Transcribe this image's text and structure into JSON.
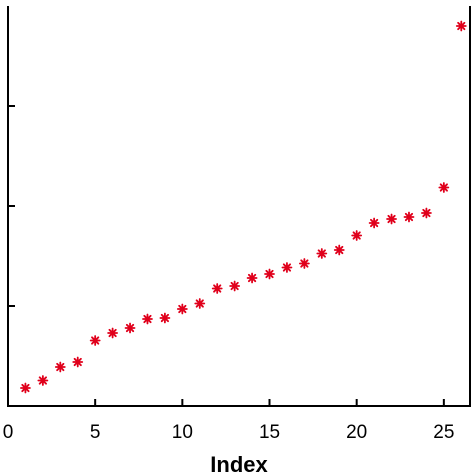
{
  "chart_data": {
    "type": "scatter",
    "title": "",
    "xlabel": "Index",
    "ylabel": "",
    "xlim": [
      0,
      26.5
    ],
    "ylim": [
      0,
      8
    ],
    "xticks": [
      0,
      5,
      10,
      15,
      20,
      25
    ],
    "xtick_labels": [
      "0",
      "5",
      "10",
      "15",
      "20",
      "25"
    ],
    "yticks": [
      2,
      4,
      6
    ],
    "ytick_labels": [
      "",
      "",
      ""
    ],
    "grid": false,
    "legend": "none",
    "marker": "asterisk",
    "marker_color": "#e0001b",
    "series": [
      {
        "x": [
          1,
          2,
          3,
          4,
          5,
          6,
          7,
          8,
          9,
          10,
          11,
          12,
          13,
          14,
          15,
          16,
          17,
          18,
          19,
          20,
          21,
          22,
          23,
          24,
          25,
          26
        ],
        "y": [
          0.36,
          0.51,
          0.78,
          0.88,
          1.31,
          1.46,
          1.56,
          1.74,
          1.76,
          1.94,
          2.05,
          2.35,
          2.4,
          2.56,
          2.64,
          2.77,
          2.85,
          3.05,
          3.12,
          3.41,
          3.66,
          3.74,
          3.78,
          3.86,
          4.37,
          7.6
        ]
      }
    ]
  }
}
